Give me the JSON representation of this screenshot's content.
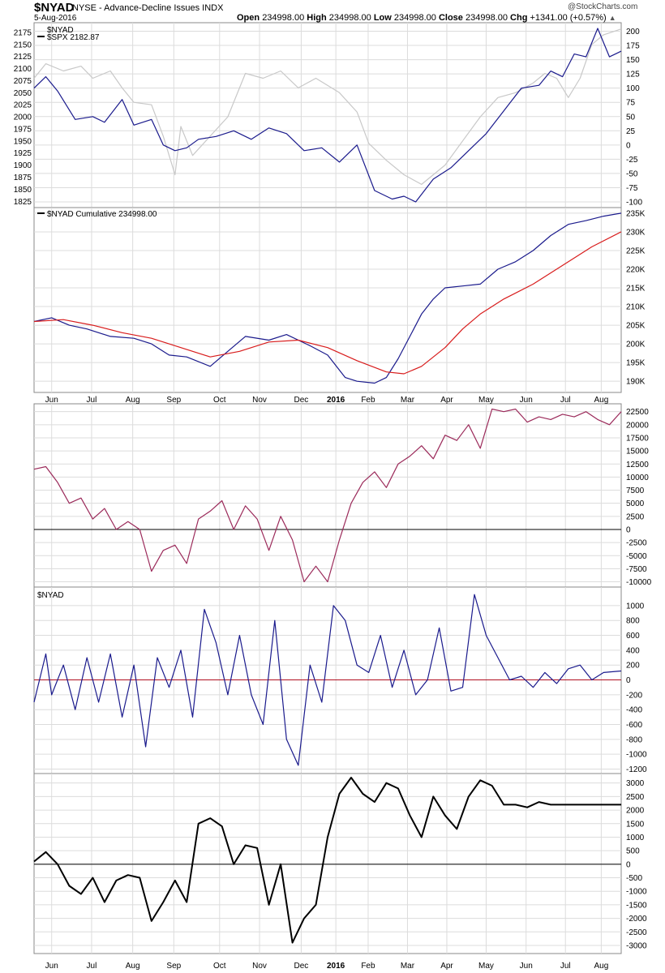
{
  "header": {
    "symbol": "$NYAD",
    "description": "NYSE - Advance-Decline Issues  INDX",
    "date": "5-Aug-2016",
    "open_label": "Open",
    "open": "234998.00",
    "high_label": "High",
    "high": "234998.00",
    "low_label": "Low",
    "low": "234998.00",
    "close_label": "Close",
    "close": "234998.00",
    "chg_label": "Chg",
    "chg": "+1341.00 (+0.57%)",
    "brand": "@StockCharts.com"
  },
  "x_axis": {
    "labels": [
      "Jun",
      "Jul",
      "Aug",
      "Sep",
      "Oct",
      "Nov",
      "Dec",
      "2016",
      "Feb",
      "Mar",
      "Apr",
      "May",
      "Jun",
      "Jul",
      "Aug"
    ],
    "bold": "2016"
  },
  "colors": {
    "spx": "#c8c8c8",
    "nyad": "#1a1a8c",
    "ma": "#d81c1c",
    "osc": "#9b2a5a",
    "black": "#000000",
    "zero_red": "#b01020",
    "grid": "#dcdcdc"
  },
  "chart_data": [
    {
      "type": "line",
      "panel": "price",
      "legend": [
        "$NYAD",
        "$SPX 2182.87"
      ],
      "left_ticks": [
        "2175",
        "2150",
        "2125",
        "2100",
        "2075",
        "2050",
        "2025",
        "2000",
        "1975",
        "1950",
        "1925",
        "1900",
        "1875",
        "1850",
        "1825"
      ],
      "right_ticks": [
        "200",
        "175",
        "150",
        "125",
        "100",
        "75",
        "50",
        "25",
        "0",
        "-25",
        "-50",
        "-75",
        "-100"
      ],
      "series": [
        {
          "name": "$SPX",
          "axis": "left",
          "x": [
            0,
            0.02,
            0.05,
            0.08,
            0.1,
            0.13,
            0.15,
            0.17,
            0.2,
            0.22,
            0.24,
            0.25,
            0.27,
            0.3,
            0.33,
            0.36,
            0.39,
            0.42,
            0.45,
            0.48,
            0.52,
            0.55,
            0.57,
            0.6,
            0.63,
            0.66,
            0.7,
            0.73,
            0.76,
            0.79,
            0.82,
            0.85,
            0.87,
            0.89,
            0.91,
            0.93,
            0.95,
            0.97,
            1.0
          ],
          "y": [
            2080,
            2110,
            2095,
            2105,
            2080,
            2095,
            2060,
            2030,
            2025,
            1960,
            1880,
            1980,
            1920,
            1960,
            2000,
            2090,
            2080,
            2095,
            2060,
            2080,
            2050,
            2010,
            1945,
            1910,
            1880,
            1860,
            1900,
            1950,
            2000,
            2040,
            2050,
            2070,
            2090,
            2080,
            2040,
            2080,
            2150,
            2170,
            2182
          ]
        },
        {
          "name": "$NYAD",
          "axis": "right",
          "x": [
            0,
            0.02,
            0.04,
            0.07,
            0.1,
            0.12,
            0.15,
            0.17,
            0.2,
            0.22,
            0.24,
            0.26,
            0.28,
            0.31,
            0.34,
            0.37,
            0.4,
            0.43,
            0.46,
            0.49,
            0.52,
            0.55,
            0.58,
            0.61,
            0.63,
            0.65,
            0.68,
            0.71,
            0.74,
            0.77,
            0.8,
            0.83,
            0.86,
            0.88,
            0.9,
            0.92,
            0.94,
            0.96,
            0.98,
            1.0
          ],
          "y": [
            100,
            120,
            95,
            45,
            50,
            40,
            80,
            35,
            45,
            0,
            -10,
            -5,
            10,
            15,
            25,
            10,
            30,
            20,
            -10,
            -5,
            -30,
            0,
            -80,
            -95,
            -90,
            -100,
            -60,
            -40,
            -10,
            20,
            60,
            100,
            105,
            130,
            120,
            160,
            155,
            205,
            155,
            165
          ]
        }
      ]
    },
    {
      "type": "line",
      "panel": "cumulative",
      "legend": "$NYAD Cumulative 234998.00",
      "right_ticks": [
        "235K",
        "230K",
        "225K",
        "220K",
        "215K",
        "210K",
        "205K",
        "200K",
        "195K",
        "190K"
      ],
      "series": [
        {
          "name": "$NYAD Cumulative",
          "x": [
            0,
            0.03,
            0.06,
            0.09,
            0.13,
            0.17,
            0.2,
            0.23,
            0.26,
            0.3,
            0.33,
            0.36,
            0.4,
            0.43,
            0.47,
            0.5,
            0.53,
            0.55,
            0.58,
            0.6,
            0.62,
            0.64,
            0.66,
            0.68,
            0.7,
            0.73,
            0.76,
            0.79,
            0.82,
            0.85,
            0.88,
            0.91,
            0.94,
            0.97,
            1.0
          ],
          "y": [
            206000,
            207000,
            205000,
            204000,
            202000,
            201500,
            200000,
            197000,
            196500,
            194000,
            198000,
            202000,
            201000,
            202500,
            199500,
            197000,
            191000,
            190000,
            189500,
            191000,
            196000,
            202000,
            208000,
            212000,
            215000,
            215500,
            216000,
            220000,
            222000,
            225000,
            229000,
            232000,
            233000,
            234200,
            234998
          ]
        },
        {
          "name": "MA",
          "x": [
            0,
            0.05,
            0.1,
            0.15,
            0.2,
            0.25,
            0.3,
            0.35,
            0.4,
            0.45,
            0.5,
            0.55,
            0.6,
            0.63,
            0.66,
            0.7,
            0.73,
            0.76,
            0.8,
            0.85,
            0.9,
            0.95,
            1.0
          ],
          "y": [
            206000,
            206500,
            205000,
            203000,
            201500,
            199000,
            196500,
            198000,
            200500,
            201000,
            199000,
            195500,
            192500,
            192000,
            194000,
            199000,
            204000,
            208000,
            212000,
            216000,
            221000,
            226000,
            230000
          ]
        }
      ]
    },
    {
      "type": "line",
      "panel": "oscillator",
      "right_ticks": [
        "22500",
        "20000",
        "17500",
        "15000",
        "12500",
        "10000",
        "7500",
        "5000",
        "2500",
        "0",
        "-2500",
        "-5000",
        "-7500",
        "-10000"
      ],
      "series": [
        {
          "name": "",
          "x": [
            0,
            0.02,
            0.04,
            0.06,
            0.08,
            0.1,
            0.12,
            0.14,
            0.16,
            0.18,
            0.2,
            0.22,
            0.24,
            0.26,
            0.28,
            0.3,
            0.32,
            0.34,
            0.36,
            0.38,
            0.4,
            0.42,
            0.44,
            0.46,
            0.48,
            0.5,
            0.52,
            0.54,
            0.56,
            0.58,
            0.6,
            0.62,
            0.64,
            0.66,
            0.68,
            0.7,
            0.72,
            0.74,
            0.76,
            0.78,
            0.8,
            0.82,
            0.84,
            0.86,
            0.88,
            0.9,
            0.92,
            0.94,
            0.96,
            0.98,
            1.0
          ],
          "y": [
            11500,
            12000,
            9000,
            5000,
            6000,
            2000,
            4000,
            0,
            1500,
            0,
            -8000,
            -4000,
            -3000,
            -6500,
            2000,
            3500,
            5500,
            0,
            4500,
            2000,
            -4000,
            2500,
            -2000,
            -10000,
            -7000,
            -10000,
            -2000,
            5000,
            9000,
            11000,
            8000,
            12500,
            14000,
            16000,
            13500,
            18000,
            17000,
            20000,
            15500,
            23000,
            22500,
            23000,
            20500,
            21500,
            21000,
            22000,
            21500,
            22500,
            21000,
            20000,
            22500
          ]
        }
      ]
    },
    {
      "type": "line",
      "panel": "nyad",
      "legend": "$NYAD",
      "right_ticks": [
        "1000",
        "800",
        "600",
        "400",
        "200",
        "0",
        "-200",
        "-400",
        "-600",
        "-800",
        "-1000",
        "-1200"
      ],
      "series": [
        {
          "name": "$NYAD",
          "x": [
            0,
            0.02,
            0.03,
            0.05,
            0.07,
            0.09,
            0.11,
            0.13,
            0.15,
            0.17,
            0.19,
            0.21,
            0.23,
            0.25,
            0.27,
            0.29,
            0.31,
            0.33,
            0.35,
            0.37,
            0.39,
            0.41,
            0.43,
            0.45,
            0.47,
            0.49,
            0.51,
            0.53,
            0.55,
            0.57,
            0.59,
            0.61,
            0.63,
            0.65,
            0.67,
            0.69,
            0.71,
            0.73,
            0.75,
            0.77,
            0.79,
            0.81,
            0.83,
            0.85,
            0.87,
            0.89,
            0.91,
            0.93,
            0.95,
            0.97,
            1.0
          ],
          "y": [
            -300,
            350,
            -200,
            200,
            -400,
            300,
            -300,
            350,
            -500,
            200,
            -900,
            300,
            -100,
            400,
            -500,
            950,
            500,
            -200,
            600,
            -200,
            -600,
            800,
            -800,
            -1150,
            200,
            -300,
            1000,
            800,
            200,
            100,
            600,
            -100,
            400,
            -200,
            0,
            700,
            -150,
            -100,
            1150,
            600,
            300,
            0,
            50,
            -100,
            100,
            -50,
            150,
            200,
            0,
            100,
            120
          ]
        }
      ]
    },
    {
      "type": "line",
      "panel": "smoothed",
      "right_ticks": [
        "3000",
        "2500",
        "2000",
        "1500",
        "1000",
        "500",
        "0",
        "-500",
        "-1000",
        "-1500",
        "-2000",
        "-2500",
        "-3000"
      ],
      "series": [
        {
          "name": "",
          "x": [
            0,
            0.02,
            0.04,
            0.06,
            0.08,
            0.1,
            0.12,
            0.14,
            0.16,
            0.18,
            0.2,
            0.22,
            0.24,
            0.26,
            0.28,
            0.3,
            0.32,
            0.34,
            0.36,
            0.38,
            0.4,
            0.42,
            0.44,
            0.46,
            0.48,
            0.5,
            0.52,
            0.54,
            0.56,
            0.58,
            0.6,
            0.62,
            0.64,
            0.66,
            0.68,
            0.7,
            0.72,
            0.74,
            0.76,
            0.78,
            0.8,
            0.82,
            0.84,
            0.86,
            0.88,
            0.9,
            0.92,
            0.94,
            0.96,
            0.98,
            1.0
          ],
          "y": [
            100,
            450,
            0,
            -800,
            -1100,
            -500,
            -1400,
            -600,
            -400,
            -500,
            -2100,
            -1400,
            -600,
            -1400,
            1500,
            1700,
            1400,
            0,
            700,
            600,
            -1500,
            0,
            -2900,
            -2000,
            -1500,
            1000,
            2600,
            3200,
            2600,
            2300,
            3000,
            2800,
            1800,
            1000,
            2500,
            1800,
            1300,
            2500,
            3100,
            2900,
            2200,
            2200,
            2100,
            2300,
            2200,
            2200,
            2200,
            2200,
            2200,
            2200,
            2200
          ]
        }
      ]
    }
  ]
}
